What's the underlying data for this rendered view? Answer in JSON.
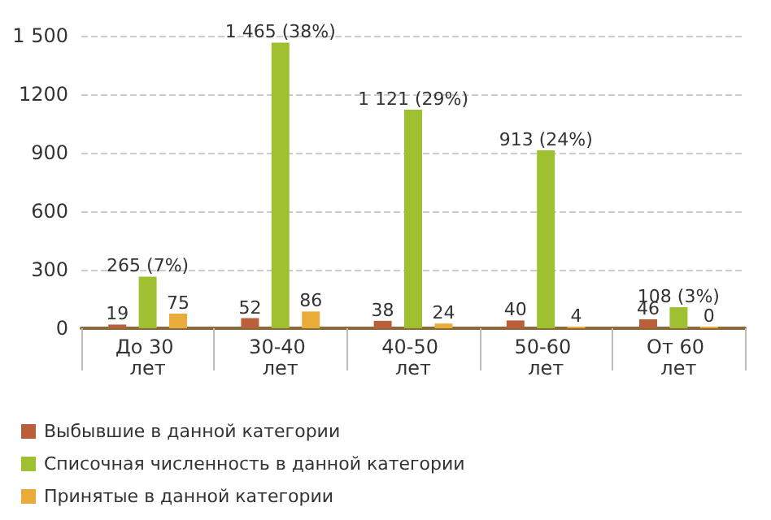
{
  "chart_data": {
    "type": "bar",
    "categories": [
      "До 30 лет",
      "30-40 лет",
      "40-50 лет",
      "50-60 лет",
      "От 60 лет"
    ],
    "series": [
      {
        "name": "Выбывшие в данной категории",
        "color": "#b9603a",
        "values": [
          19,
          52,
          38,
          40,
          46
        ],
        "value_labels": [
          "19",
          "52",
          "38",
          "40",
          "46"
        ]
      },
      {
        "name": "Списочная численность в данной категории",
        "color": "#9fc031",
        "values": [
          265,
          1465,
          1121,
          913,
          108
        ],
        "value_labels": [
          "265 (7%)",
          "1 465 (38%)",
          "1 121 (29%)",
          "913 (24%)",
          "108 (3%)"
        ]
      },
      {
        "name": "Принятые в данной категории",
        "color": "#e9ab3a",
        "values": [
          75,
          86,
          24,
          4,
          0
        ],
        "value_labels": [
          "75",
          "86",
          "24",
          "4",
          "0"
        ]
      }
    ],
    "ylim": [
      0,
      1500
    ],
    "yticks": [
      0,
      300,
      600,
      900,
      1200,
      {
        "value": 1500,
        "label": "1 500"
      }
    ],
    "grid": "y",
    "legend": "bottom left"
  }
}
